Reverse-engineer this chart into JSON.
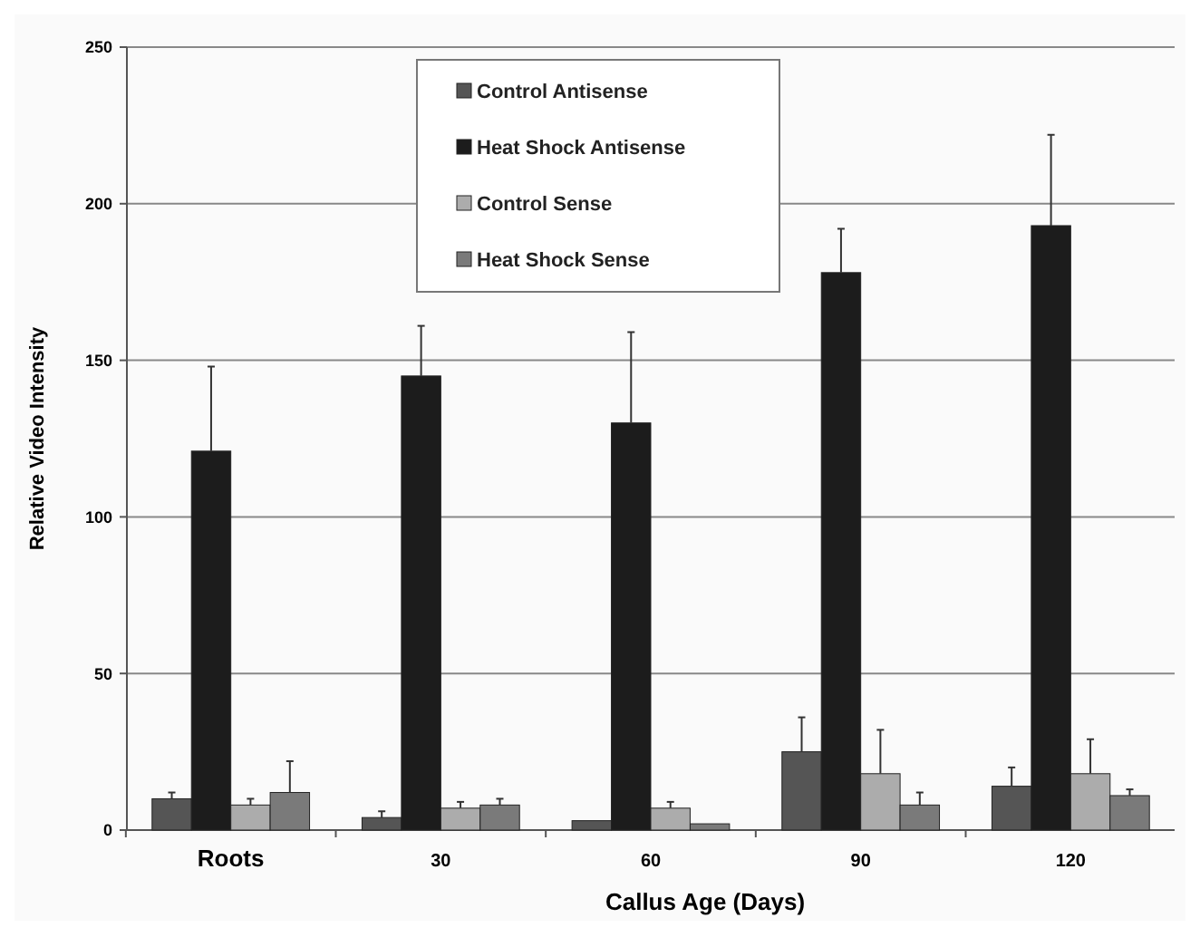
{
  "chart_data": {
    "type": "bar",
    "xlabel": "Callus Age (Days)",
    "ylabel": "Relative Video Intensity",
    "categories": [
      "Roots",
      "30",
      "60",
      "90",
      "120"
    ],
    "series": [
      {
        "name": "Control Antisense",
        "color": "#555555",
        "values": [
          10,
          4,
          3,
          25,
          14
        ],
        "errors": [
          [
            10,
            12
          ],
          [
            4,
            6
          ],
          null,
          [
            25,
            36
          ],
          [
            14,
            20
          ]
        ]
      },
      {
        "name": "Heat Shock Antisense",
        "color": "#1c1c1c",
        "values": [
          121,
          145,
          130,
          178,
          193
        ],
        "errors": [
          [
            121,
            148
          ],
          [
            145,
            161
          ],
          [
            130,
            159
          ],
          [
            178,
            192
          ],
          [
            193,
            222
          ]
        ]
      },
      {
        "name": "Control Sense",
        "color": "#acacac",
        "values": [
          8,
          7,
          7,
          18,
          18
        ],
        "errors": [
          [
            8,
            10
          ],
          [
            7,
            9
          ],
          [
            7,
            9
          ],
          [
            18,
            32
          ],
          [
            18,
            29
          ]
        ]
      },
      {
        "name": "Heat Shock Sense",
        "color": "#7a7a7a",
        "values": [
          12,
          8,
          2,
          8,
          11
        ],
        "errors": [
          [
            12,
            22
          ],
          [
            8,
            10
          ],
          null,
          [
            8,
            12
          ],
          [
            11,
            13
          ]
        ]
      }
    ],
    "ylim": [
      0,
      250
    ],
    "yticks": [
      0,
      50,
      100,
      150,
      200,
      250
    ],
    "grid": "y",
    "legend": "top"
  }
}
